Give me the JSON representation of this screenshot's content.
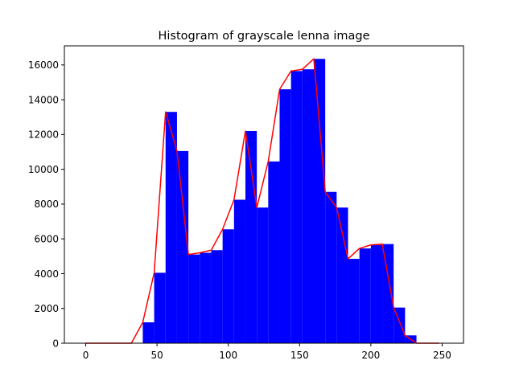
{
  "chart_data": {
    "type": "bar",
    "title": "Histogram of grayscale lenna image",
    "xlabel": "",
    "ylabel": "",
    "xlim": [
      -15,
      265
    ],
    "ylim": [
      0,
      17100
    ],
    "xticks": [
      0,
      50,
      100,
      150,
      200,
      250
    ],
    "yticks": [
      0,
      2000,
      4000,
      6000,
      8000,
      10000,
      12000,
      14000,
      16000
    ],
    "grid": false,
    "bar_color": "#0000ff",
    "line_color": "#ff0000",
    "series": [
      {
        "type": "histogram",
        "bin_width": 8,
        "bin_starts": [
          0,
          8,
          16,
          24,
          32,
          40,
          48,
          56,
          64,
          72,
          80,
          88,
          96,
          104,
          112,
          120,
          128,
          136,
          144,
          152,
          160,
          168,
          176,
          184,
          192,
          200,
          208,
          216,
          224,
          232,
          240
        ],
        "values": [
          0,
          0,
          0,
          0,
          0,
          1200,
          4050,
          13300,
          11050,
          5100,
          5200,
          5350,
          6550,
          8250,
          12200,
          7800,
          10450,
          14600,
          15650,
          15750,
          16350,
          8700,
          7800,
          4850,
          5450,
          5650,
          5700,
          2050,
          450,
          0,
          0
        ]
      },
      {
        "type": "line",
        "x": [
          0,
          8,
          16,
          24,
          32,
          40,
          48,
          56,
          64,
          72,
          80,
          88,
          96,
          104,
          112,
          120,
          128,
          136,
          144,
          152,
          160,
          168,
          176,
          184,
          192,
          200,
          208,
          216,
          224,
          232,
          240,
          248
        ],
        "y": [
          0,
          0,
          0,
          0,
          0,
          1200,
          4050,
          13300,
          11050,
          5100,
          5200,
          5350,
          6550,
          8250,
          12200,
          7800,
          10450,
          14600,
          15650,
          15750,
          16350,
          8700,
          7800,
          4850,
          5450,
          5650,
          5700,
          2050,
          450,
          0,
          0,
          0
        ]
      }
    ]
  }
}
